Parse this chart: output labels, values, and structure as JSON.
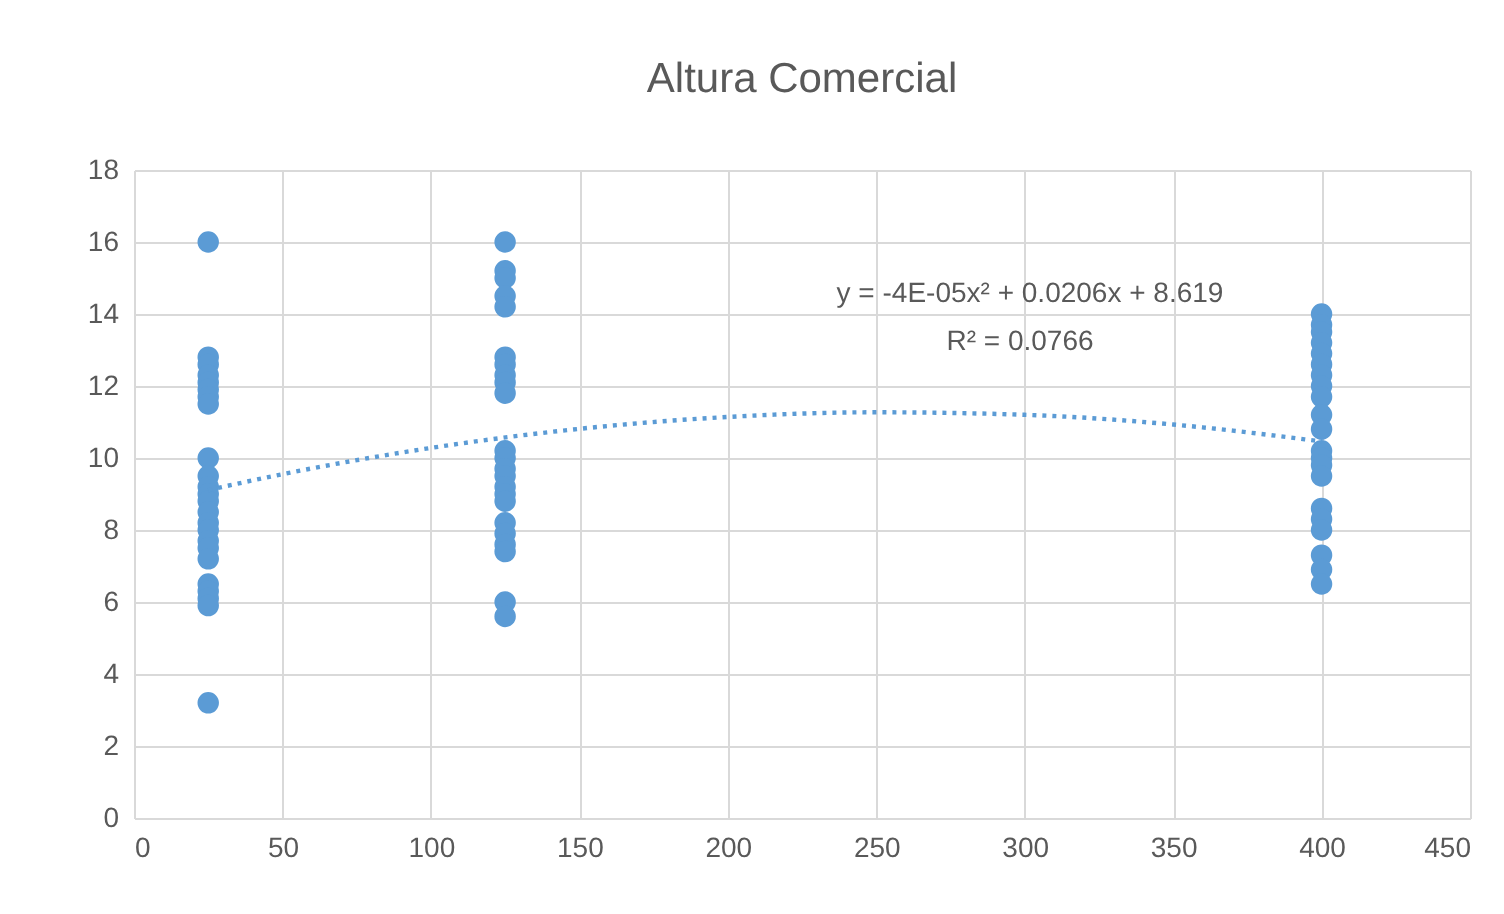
{
  "chart_data": {
    "type": "scatter",
    "title": "Altura Comercial",
    "xlim": [
      0,
      450
    ],
    "xticks": [
      0,
      50,
      100,
      150,
      200,
      250,
      300,
      350,
      400,
      450
    ],
    "ylim": [
      0,
      18
    ],
    "yticks": [
      0,
      2,
      4,
      6,
      8,
      10,
      12,
      14,
      16,
      18
    ],
    "grid": true,
    "marker": "circle",
    "annotations": [
      "y = -4E-05x² + 0.0206x + 8.619",
      "R² = 0.0766"
    ],
    "series": [
      {
        "color": "#5b9bd5",
        "x": [
          25,
          25,
          25,
          25,
          25,
          25,
          25,
          25,
          25,
          25,
          25,
          25,
          25,
          25,
          25,
          25,
          25,
          25,
          25,
          25,
          25,
          25,
          25,
          25,
          125,
          125,
          125,
          125,
          125,
          125,
          125,
          125,
          125,
          125,
          125,
          125,
          125,
          125,
          125,
          125,
          125,
          125,
          125,
          125,
          125,
          125,
          125,
          400,
          400,
          400,
          400,
          400,
          400,
          400,
          400,
          400,
          400,
          400,
          400,
          400,
          400,
          400,
          400,
          400,
          400,
          400,
          400,
          400
        ],
        "values": [
          16,
          12.8,
          12.6,
          12.3,
          12.1,
          11.9,
          11.7,
          11.5,
          10,
          9.5,
          9.2,
          9,
          8.8,
          8.5,
          8.2,
          8,
          7.7,
          7.5,
          7.2,
          6.5,
          6.3,
          6.1,
          5.9,
          3.2,
          16,
          15.2,
          15,
          14.5,
          12.8,
          12.6,
          12.3,
          12.1,
          11.8,
          10.2,
          10,
          9.7,
          9.5,
          9.2,
          9,
          8.8,
          8.2,
          7.9,
          7.6,
          7.4,
          6,
          5.6,
          14.2,
          14,
          13.7,
          13.5,
          13.2,
          12.9,
          12.6,
          12.3,
          12,
          11.7,
          11.2,
          10.8,
          10.2,
          10,
          9.8,
          9.5,
          8.6,
          8.3,
          8,
          7.3,
          6.9,
          6.5
        ]
      },
      {
        "type": "line",
        "color": "#5b9bd5",
        "line_style": "dotted",
        "marker": "none",
        "x": [
          25,
          50,
          100,
          150,
          200,
          250,
          300,
          350,
          400
        ],
        "values": [
          9.11,
          9.55,
          10.28,
          10.81,
          11.14,
          11.27,
          11.2,
          10.93,
          10.46
        ]
      }
    ]
  }
}
